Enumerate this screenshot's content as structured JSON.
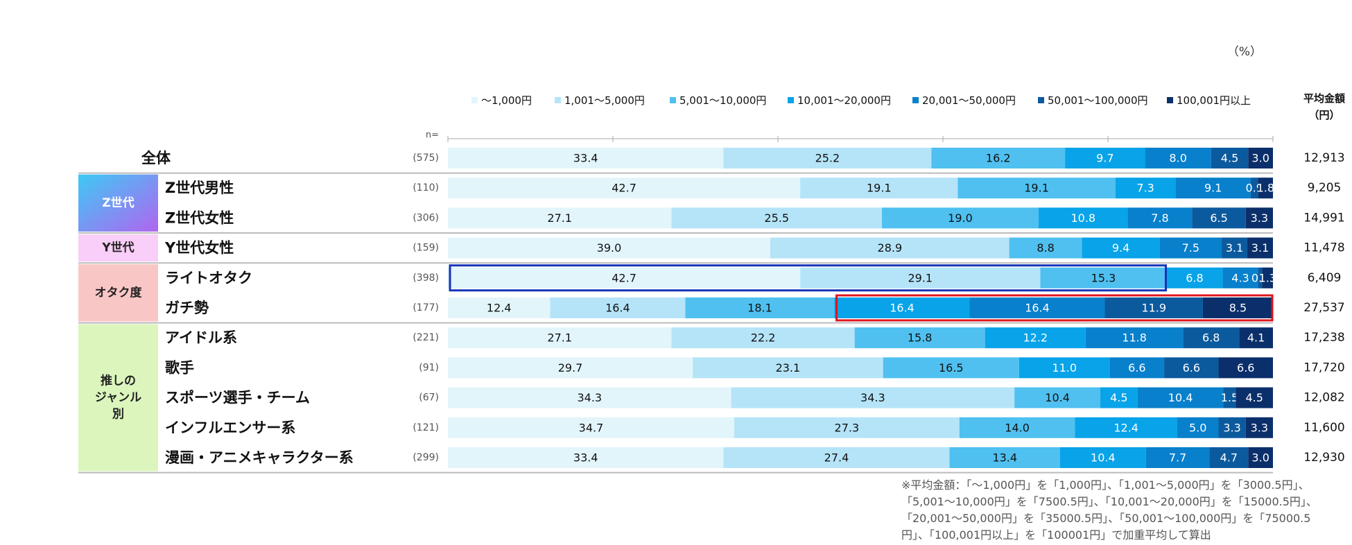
{
  "chart_data": {
    "type": "bar",
    "stacked": "100%",
    "orientation": "horizontal",
    "unit_label": "（%）",
    "n_label": "n=",
    "avg_header": "平均金額\n（円）",
    "series": [
      {
        "name": "～1,000円",
        "color": "#e2f5fb"
      },
      {
        "name": "1,001～5,000円",
        "color": "#b5e4f8"
      },
      {
        "name": "5,001～10,000円",
        "color": "#4fc0f0"
      },
      {
        "name": "10,001～20,000円",
        "color": "#08a3e8"
      },
      {
        "name": "20,001～50,000円",
        "color": "#0880cc"
      },
      {
        "name": "50,001～100,000円",
        "color": "#0c5a9e"
      },
      {
        "name": "100,001円以上",
        "color": "#0b2f6a"
      }
    ],
    "groups": [
      {
        "label": "",
        "color": "",
        "rows": [
          0
        ]
      },
      {
        "label": "Z世代",
        "gradient": [
          "#3ec9f5",
          "#b165f0"
        ],
        "text_color": "#ffffff",
        "rows": [
          1,
          2
        ]
      },
      {
        "label": "Y世代",
        "color": "#f9cef8",
        "text_color": "#222222",
        "rows": [
          3
        ]
      },
      {
        "label": "オタク度",
        "color": "#f9c6c6",
        "text_color": "#222222",
        "rows": [
          4,
          5
        ]
      },
      {
        "label": "推しの\nジャンル\n別",
        "color": "#dcf5bd",
        "text_color": "#222222",
        "rows": [
          6,
          7,
          8,
          9,
          10
        ]
      }
    ],
    "rows": [
      {
        "label": "全体",
        "n": "(575)",
        "values": [
          33.4,
          25.2,
          16.2,
          9.7,
          8.0,
          4.5,
          3.0
        ],
        "labels": [
          "33.4",
          "25.2",
          "16.2",
          "9.7",
          "8.0",
          "4.5",
          "3.0"
        ],
        "avg": "12,913"
      },
      {
        "label": "Z世代男性",
        "n": "(110)",
        "values": [
          42.7,
          19.1,
          19.1,
          7.3,
          9.1,
          0.9,
          1.8
        ],
        "labels": [
          "42.7",
          "19.1",
          "19.1",
          "7.3",
          "9.1",
          "0.9",
          "1.8"
        ],
        "avg": "9,205"
      },
      {
        "label": "Z世代女性",
        "n": "(306)",
        "values": [
          27.1,
          25.5,
          19.0,
          10.8,
          7.8,
          6.5,
          3.3
        ],
        "labels": [
          "27.1",
          "25.5",
          "19.0",
          "10.8",
          "7.8",
          "6.5",
          "3.3"
        ],
        "avg": "14,991"
      },
      {
        "label": "Y世代女性",
        "n": "(159)",
        "values": [
          39.0,
          28.9,
          8.8,
          9.4,
          7.5,
          3.1,
          3.1
        ],
        "labels": [
          "39.0",
          "28.9",
          "8.8",
          "9.4",
          "7.5",
          "3.1",
          "3.1"
        ],
        "avg": "11,478"
      },
      {
        "label": "ライトオタク",
        "n": "(398)",
        "values": [
          42.7,
          29.1,
          15.3,
          6.8,
          4.3,
          0.5,
          1.3
        ],
        "labels": [
          "42.7",
          "29.1",
          "15.3",
          "6.8",
          "4.3",
          "0.5",
          "1.3"
        ],
        "avg": "6,409"
      },
      {
        "label": "ガチ勢",
        "n": "(177)",
        "values": [
          12.4,
          16.4,
          18.1,
          16.4,
          16.4,
          11.9,
          8.5
        ],
        "labels": [
          "12.4",
          "16.4",
          "18.1",
          "16.4",
          "16.4",
          "11.9",
          "8.5"
        ],
        "avg": "27,537"
      },
      {
        "label": "アイドル系",
        "n": "(221)",
        "values": [
          27.1,
          22.2,
          15.8,
          12.2,
          11.8,
          6.8,
          4.1
        ],
        "labels": [
          "27.1",
          "22.2",
          "15.8",
          "12.2",
          "11.8",
          "6.8",
          "4.1"
        ],
        "avg": "17,238"
      },
      {
        "label": "歌手",
        "n": "(91)",
        "values": [
          29.7,
          23.1,
          16.5,
          11.0,
          6.6,
          6.6,
          6.6
        ],
        "labels": [
          "29.7",
          "23.1",
          "16.5",
          "11.0",
          "6.6",
          "6.6",
          "6.6"
        ],
        "avg": "17,720"
      },
      {
        "label": "スポーツ選手・チーム",
        "n": "(67)",
        "values": [
          34.3,
          34.3,
          10.4,
          4.5,
          10.4,
          1.5,
          4.5
        ],
        "labels": [
          "34.3",
          "34.3",
          "10.4",
          "4.5",
          "10.4",
          "1.5",
          "4.5"
        ],
        "avg": "12,082"
      },
      {
        "label": "インフルエンサー系",
        "n": "(121)",
        "values": [
          34.7,
          27.3,
          14.0,
          12.4,
          5.0,
          3.3,
          3.3
        ],
        "labels": [
          "34.7",
          "27.3",
          "14.0",
          "12.4",
          "5.0",
          "3.3",
          "3.3"
        ],
        "avg": "11,600"
      },
      {
        "label": "漫画・アニメキャラクター系",
        "n": "(299)",
        "values": [
          33.4,
          27.4,
          13.4,
          10.4,
          7.7,
          4.7,
          3.0
        ],
        "labels": [
          "33.4",
          "27.4",
          "13.4",
          "10.4",
          "7.7",
          "4.7",
          "3.0"
        ],
        "avg": "12,930"
      }
    ],
    "highlights": [
      {
        "row": 4,
        "from_series": 0,
        "to_series": 2,
        "color": "#1433b8"
      },
      {
        "row": 5,
        "from_series": 3,
        "to_series": 6,
        "color": "#e0141e"
      }
    ],
    "footnote": "※平均金額：「～1,000円」を「1,000円」、「1,001～5,000円」を「3000.5円」、「5,001～10,000円」を「7500.5円」、「10,001～20,000円」を「15000.5円」、「20,001～50,000円」を「35000.5円」、「50,001～100,000円」を「75000.5円」、「100,001円以上」を「100001円」で加重平均して算出"
  }
}
